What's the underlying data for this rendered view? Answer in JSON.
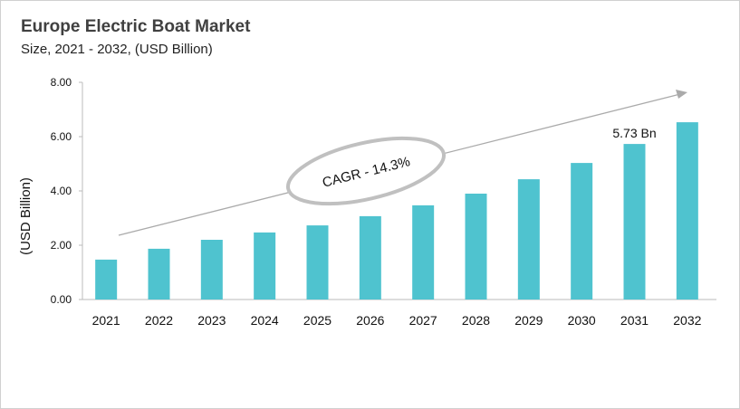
{
  "chart_data": {
    "type": "bar",
    "title": "Europe Electric Boat Market",
    "subtitle": "Size, 2021 - 2032, (USD Billion)",
    "ylabel": "(USD Billion)",
    "xlabel": "",
    "ylim": [
      0,
      8
    ],
    "yticks": [
      "0.00",
      "2.00",
      "4.00",
      "6.00",
      "8.00"
    ],
    "categories": [
      "2021",
      "2022",
      "2023",
      "2024",
      "2025",
      "2026",
      "2027",
      "2028",
      "2029",
      "2030",
      "2031",
      "2032"
    ],
    "values": [
      1.47,
      1.87,
      2.2,
      2.47,
      2.73,
      3.07,
      3.47,
      3.9,
      4.43,
      5.03,
      5.73,
      6.53
    ],
    "data_label": {
      "category": "2031",
      "text": "5.73 Bn"
    },
    "annotation": "CAGR - 14.3%",
    "bar_color": "#4fc3cf",
    "grid": false,
    "legend": "none"
  }
}
